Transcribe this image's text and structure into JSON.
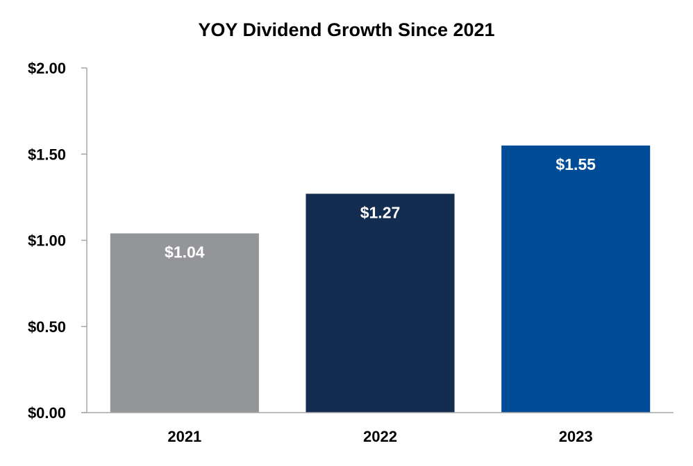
{
  "chart_data": {
    "type": "bar",
    "title": "YOY Dividend Growth Since 2021",
    "categories": [
      "2021",
      "2022",
      "2023"
    ],
    "values": [
      1.04,
      1.27,
      1.55
    ],
    "data_labels": [
      "$1.04",
      "$1.27",
      "$1.55"
    ],
    "bar_colors": [
      "#939598",
      "#132c50",
      "#004c97"
    ],
    "ylim": [
      0,
      2.0
    ],
    "yticks": [
      0,
      0.5,
      1.0,
      1.5,
      2.0
    ],
    "ytick_labels": [
      "$0.00",
      "$0.50",
      "$1.00",
      "$1.50",
      "$2.00"
    ],
    "xlabel": "",
    "ylabel": "",
    "grid": false,
    "legend": "none",
    "axis_color": "#a6a6a6",
    "label_color": "#ffffff"
  }
}
